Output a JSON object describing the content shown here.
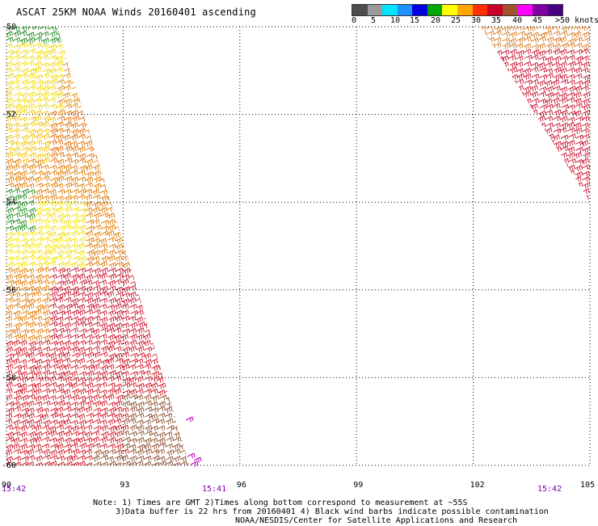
{
  "title": "ASCAT 25KM NOAA Winds 20160401 ascending",
  "colorbar": {
    "colors": [
      "#4d4d4d",
      "#9a9a9a",
      "#00e5ff",
      "#1e90ff",
      "#0000e0",
      "#00a800",
      "#ffff00",
      "#ffa500",
      "#ff3000",
      "#c8002a",
      "#a0522d",
      "#ff00ff",
      "#8000a0",
      "#4b0082"
    ],
    "labels": [
      "0",
      "5",
      "10",
      "15",
      "20",
      "25",
      "30",
      "35",
      "40",
      "45",
      ">50 knots"
    ]
  },
  "map": {
    "lat_labels": [
      "-50",
      "-52",
      "-54",
      "-56",
      "-58",
      "-60"
    ],
    "lon_labels": [
      "90",
      "93",
      "96",
      "99",
      "102",
      "105"
    ],
    "time_labels": [
      {
        "text": "15:42",
        "color": "#7b00a8"
      },
      {
        "text": "15:41",
        "color": "#7b00a8"
      },
      {
        "text": "15:42",
        "color": "#7b00a8"
      }
    ],
    "grid": true,
    "swaths": [
      {
        "name": "west-swath",
        "corners": [
          [
            90.0,
            -50.0
          ],
          [
            91.3,
            -50.0
          ],
          [
            93.1,
            -55.2
          ],
          [
            94.7,
            -60.0
          ],
          [
            90.0,
            -60.0
          ]
        ]
      },
      {
        "name": "east-swath",
        "corners": [
          [
            102.2,
            -50.0
          ],
          [
            105.0,
            -50.0
          ],
          [
            105.0,
            -54.0
          ]
        ]
      }
    ]
  },
  "notes": {
    "line1": "Note: 1) Times are GMT 2)Times along bottom correspond to measurement at ~55S",
    "line2": "3)Data buffer is 22 hrs from 20160401 4) Black wind barbs indicate possible contamination",
    "line3": "NOAA/NESDIS/Center for Satellite Applications and Research"
  }
}
